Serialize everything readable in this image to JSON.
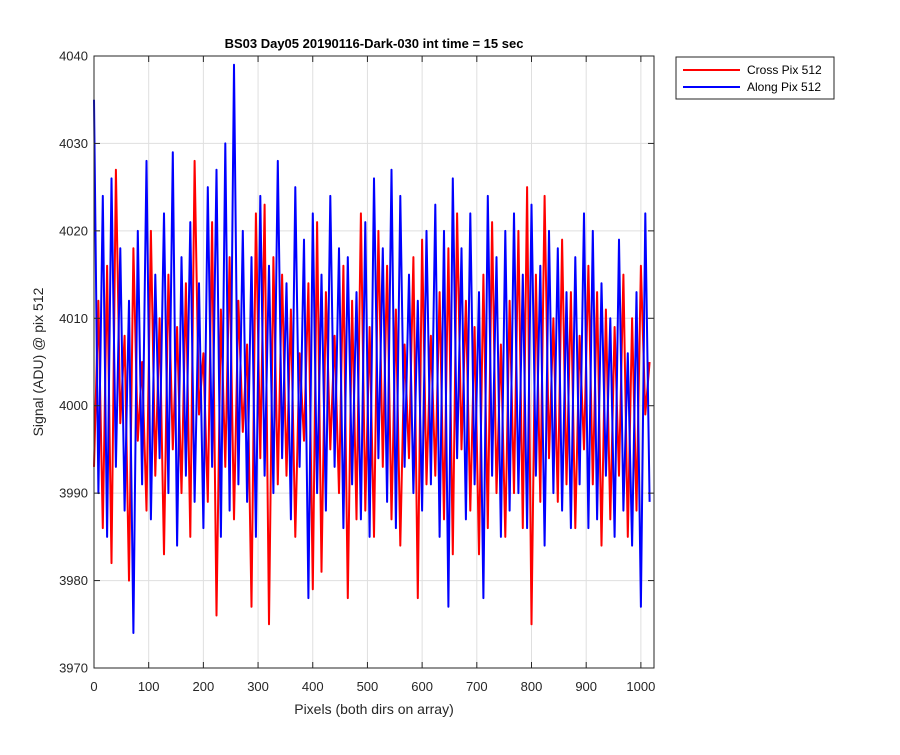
{
  "chart_data": {
    "type": "line",
    "title": "BS03 Day05 20190116-Dark-030 int time = 15 sec",
    "xlabel": "Pixels (both dirs on array)",
    "ylabel": "Signal (ADU) @ pix 512",
    "xlim": [
      0,
      1024
    ],
    "ylim": [
      3970,
      4040
    ],
    "xticks": [
      0,
      100,
      200,
      300,
      400,
      500,
      600,
      700,
      800,
      900,
      1000
    ],
    "yticks": [
      3970,
      3980,
      3990,
      4000,
      4010,
      4020,
      4030,
      4040
    ],
    "grid": true,
    "legend_position": "outside top-right",
    "series": [
      {
        "name": "Cross Pix 512",
        "color": "#ff0000",
        "sample_step": 8,
        "values": [
          3993,
          4012,
          3986,
          4016,
          3982,
          4027,
          3998,
          4008,
          3980,
          4018,
          3996,
          4005,
          3988,
          4020,
          3992,
          4010,
          3983,
          4015,
          3995,
          4009,
          3990,
          4014,
          3985,
          4028,
          3999,
          4006,
          3989,
          4021,
          3976,
          4011,
          3993,
          4017,
          3987,
          4012,
          3997,
          4007,
          3977,
          4022,
          3994,
          4023,
          3975,
          4017,
          3991,
          4015,
          3992,
          4011,
          3985,
          4006,
          3996,
          4014,
          3979,
          4021,
          3981,
          4013,
          3995,
          4008,
          3990,
          4016,
          3978,
          4012,
          3987,
          4022,
          3988,
          4009,
          3985,
          4020,
          3993,
          4016,
          3987,
          4011,
          3984,
          4007,
          3994,
          4017,
          3978,
          4019,
          3991,
          4008,
          3992,
          4013,
          3987,
          4018,
          3983,
          4022,
          3995,
          4012,
          3988,
          4009,
          3983,
          4015,
          3986,
          4021,
          3990,
          4007,
          3985,
          4012,
          3990,
          4020,
          3986,
          4025,
          3975,
          4015,
          3989,
          4024,
          3994,
          4010,
          3989,
          4019,
          3991,
          4013,
          3986,
          4008,
          3995,
          4016,
          3991,
          4013,
          3984,
          4011,
          3987,
          4009,
          3992,
          4015,
          3985,
          4010,
          3988,
          4016,
          3999,
          4005
        ]
      },
      {
        "name": "Along Pix 512",
        "color": "#0000ff",
        "sample_step": 8,
        "values": [
          4035,
          3990,
          4024,
          3985,
          4026,
          3993,
          4018,
          3988,
          4012,
          3974,
          4020,
          3991,
          4028,
          3987,
          4015,
          3994,
          4022,
          3990,
          4029,
          3984,
          4017,
          3992,
          4021,
          3989,
          4014,
          3986,
          4025,
          3993,
          4027,
          3985,
          4030,
          3988,
          4039,
          3991,
          4020,
          3989,
          4017,
          3985,
          4024,
          3992,
          4016,
          3990,
          4028,
          3994,
          4014,
          3987,
          4025,
          3993,
          4019,
          3978,
          4022,
          3990,
          4015,
          3988,
          4024,
          3993,
          4018,
          3986,
          4017,
          3991,
          4013,
          3987,
          4021,
          3985,
          4026,
          3994,
          4018,
          3989,
          4027,
          3986,
          4024,
          3993,
          4015,
          3990,
          4012,
          3988,
          4020,
          3991,
          4023,
          3985,
          4020,
          3977,
          4026,
          3994,
          4018,
          3987,
          4022,
          3991,
          4013,
          3978,
          4024,
          3992,
          4017,
          3985,
          4020,
          3988,
          4022,
          3990,
          4015,
          3986,
          4023,
          3992,
          4016,
          3984,
          4020,
          3990,
          4018,
          3988,
          4013,
          3986,
          4017,
          3991,
          4022,
          3986,
          4020,
          3987,
          4014,
          3992,
          4010,
          3985,
          4019,
          3988,
          4006,
          3984,
          4013,
          3977,
          4022,
          3989
        ]
      }
    ]
  }
}
